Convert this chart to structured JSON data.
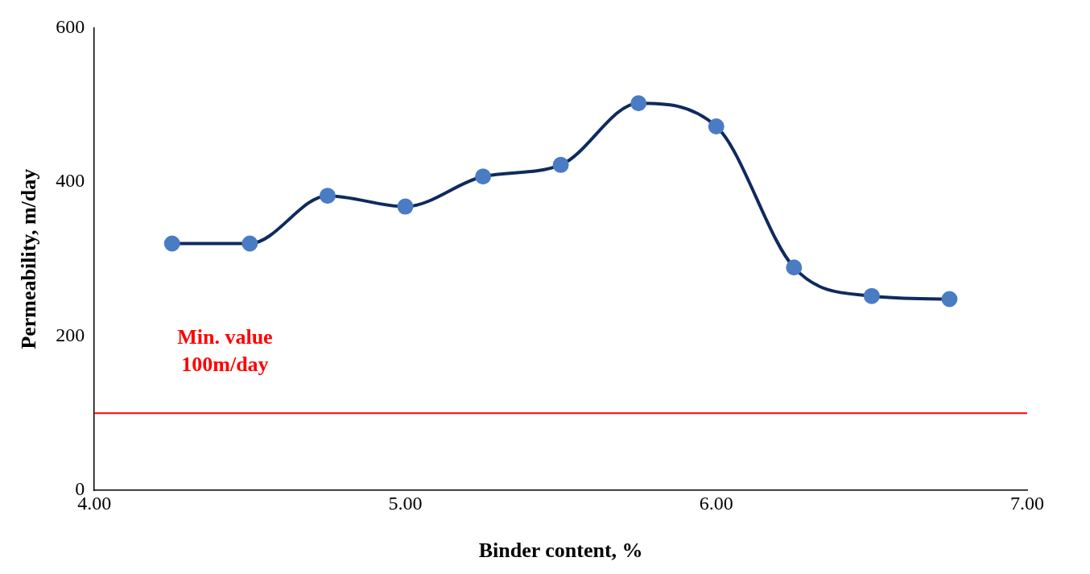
{
  "chart_data": {
    "type": "line",
    "xlabel": "Binder content, %",
    "ylabel": "Permeability, m/day",
    "x": [
      4.25,
      4.5,
      4.75,
      5.0,
      5.25,
      5.5,
      5.75,
      6.0,
      6.25,
      6.5,
      6.75
    ],
    "series": [
      {
        "color": "#0f2a5e",
        "colors": [
          "#4a7cc4",
          "#4a7cc4",
          "#4a7cc4",
          "#4a7cc4",
          "#4a7cc4",
          "#4a7cc4",
          "#4a7cc4",
          "#4a7cc4",
          "#4a7cc4",
          "#4a7cc4",
          "#4a7cc4"
        ],
        "values": [
          320,
          320,
          382,
          368,
          407,
          422,
          502,
          472,
          289,
          252,
          248
        ]
      }
    ],
    "marker": "circle",
    "xlim": [
      4,
      7
    ],
    "xticks": [
      {
        "value": 4,
        "label": "4.00"
      },
      {
        "value": 5,
        "label": "5.00"
      },
      {
        "value": 6,
        "label": "6.00"
      },
      {
        "value": 7,
        "label": "7.00"
      }
    ],
    "ylim": [
      0,
      600
    ],
    "yticks": [
      0,
      200,
      400,
      600
    ],
    "grid": false,
    "legend": false,
    "ref_lines": [
      {
        "axis": "y",
        "value": 100,
        "label": "Min. value\n100m/day",
        "color": "#ff0000"
      }
    ]
  }
}
